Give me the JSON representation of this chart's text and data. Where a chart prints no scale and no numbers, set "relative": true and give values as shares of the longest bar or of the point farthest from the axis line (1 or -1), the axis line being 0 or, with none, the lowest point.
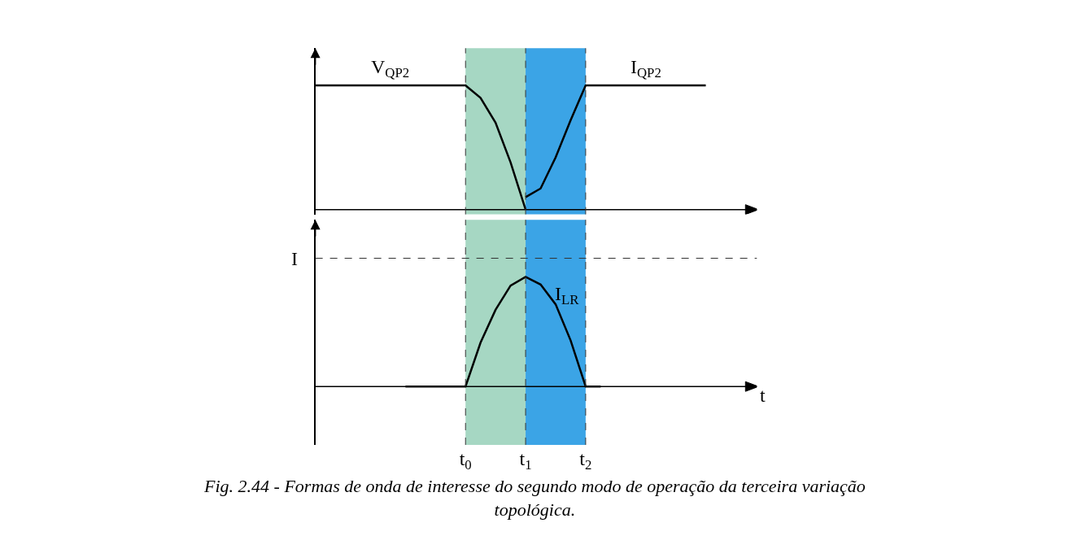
{
  "chart_data": [
    {
      "type": "line",
      "relative": true,
      "tick_labels": false,
      "grid": false,
      "categories": [
        null,
        null,
        null,
        null,
        null,
        null,
        null,
        null,
        null,
        null,
        "t$_{0}$",
        null,
        null,
        null,
        "t$_{1}$",
        null,
        null,
        null,
        "t$_{2}$",
        null,
        null,
        null,
        null,
        null,
        null,
        null,
        null,
        null,
        null,
        null
      ],
      "series": [
        {
          "name": "V$_{QP2}$",
          "color": "#000000",
          "values": [
            1,
            1,
            1,
            1,
            1,
            1,
            1,
            1,
            1,
            1,
            1,
            0.9,
            0.7,
            0.38,
            0,
            null,
            null,
            null,
            null,
            null,
            null,
            null,
            null,
            null,
            null,
            null,
            null,
            null,
            null,
            null
          ]
        },
        {
          "name": "I$_{QP2}$",
          "color": "#000000",
          "values": [
            null,
            null,
            null,
            null,
            null,
            null,
            null,
            null,
            null,
            null,
            null,
            null,
            null,
            null,
            0.1,
            0.17,
            0.42,
            0.72,
            1,
            1,
            1,
            1,
            1,
            1,
            1,
            1,
            1,
            null,
            null,
            null
          ]
        }
      ],
      "bands": [
        {
          "axis": "x",
          "from": "t$_{0}$",
          "to": "t$_{1}$",
          "color": "#a6d7c3"
        },
        {
          "axis": "x",
          "from": "t$_{1}$",
          "to": "t$_{2}$",
          "color": "#3ba4e6"
        }
      ],
      "ref_lines": [
        {
          "axis": "x",
          "value": "t$_{0}$",
          "line_style": "dashed"
        },
        {
          "axis": "x",
          "value": "t$_{1}$",
          "line_style": "dashed"
        },
        {
          "axis": "x",
          "value": "t$_{2}$",
          "line_style": "dashed"
        }
      ]
    },
    {
      "type": "line",
      "relative": true,
      "tick_labels": "x",
      "grid": false,
      "xlabel": "t",
      "categories": [
        null,
        null,
        null,
        null,
        null,
        null,
        null,
        null,
        null,
        null,
        "t$_{0}$",
        null,
        null,
        null,
        "t$_{1}$",
        null,
        null,
        null,
        "t$_{2}$",
        null,
        null,
        null,
        null,
        null,
        null,
        null,
        null,
        null,
        null,
        null
      ],
      "series": [
        {
          "name": "I$_{LR}$",
          "color": "#000000",
          "values": [
            null,
            null,
            null,
            null,
            null,
            null,
            0,
            0,
            0,
            0,
            0,
            0.4,
            0.7,
            0.92,
            1,
            0.93,
            0.75,
            0.42,
            0,
            0,
            null,
            null,
            null,
            null,
            null,
            null,
            null,
            null,
            null,
            null
          ]
        }
      ],
      "bands": [
        {
          "axis": "x",
          "from": "t$_{0}$",
          "to": "t$_{1}$",
          "color": "#a6d7c3"
        },
        {
          "axis": "x",
          "from": "t$_{1}$",
          "to": "t$_{2}$",
          "color": "#3ba4e6"
        }
      ],
      "ref_lines": [
        {
          "axis": "y",
          "value": 1.17,
          "label": "I",
          "line_style": "dashed"
        },
        {
          "axis": "x",
          "value": "t$_{0}$",
          "line_style": "dashed"
        },
        {
          "axis": "x",
          "value": "t$_{1}$",
          "line_style": "dashed"
        },
        {
          "axis": "x",
          "value": "t$_{2}$",
          "line_style": "dashed"
        }
      ],
      "annotations": [
        "Fig. 2.44 - Formas de onda de interesse do segundo modo de operação da terceira variação topológica."
      ]
    }
  ]
}
